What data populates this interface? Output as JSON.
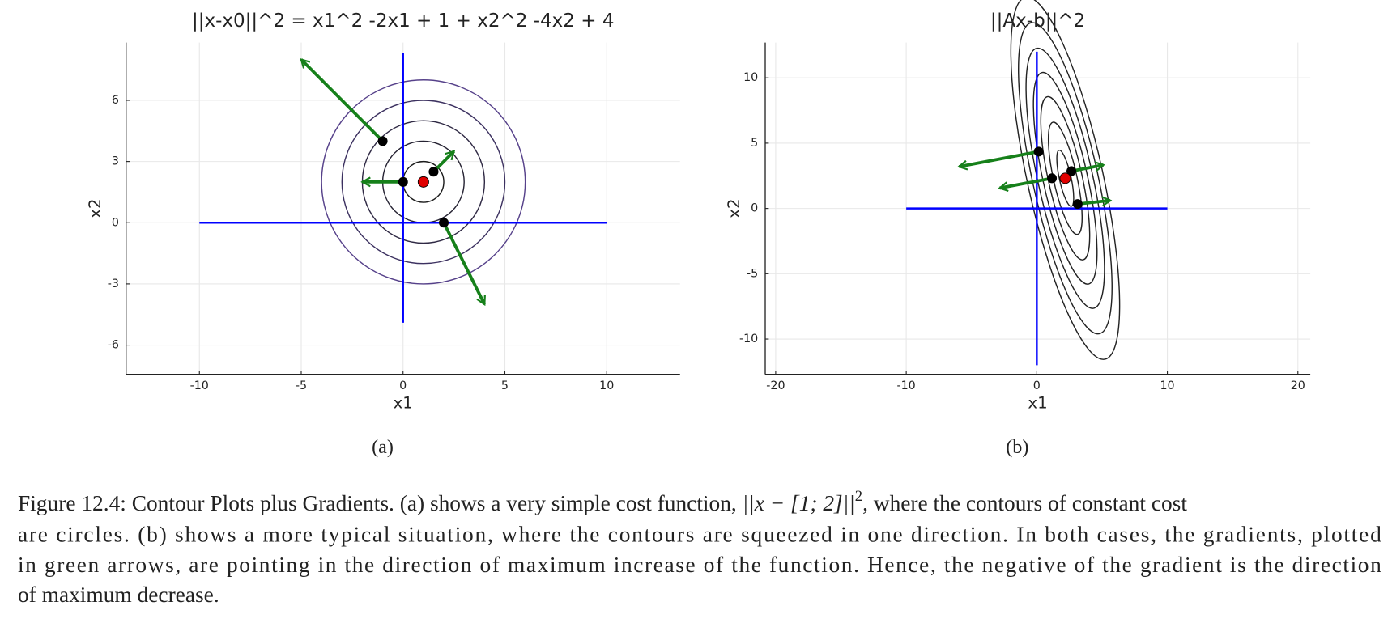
{
  "chart_data": [
    {
      "type": "contour",
      "title": "||x-x0||^2 = x1^2 -2x1 + 1 + x2^2 -4x2 + 4",
      "x_label": "x1",
      "y_label": "x2",
      "panel_label": "(a)",
      "xlim": [
        -13.6,
        13.6
      ],
      "ylim": [
        -7.43,
        8.83
      ],
      "xticks": [
        -10,
        -5,
        0,
        5,
        10
      ],
      "yticks": [
        -6,
        -3,
        0,
        3,
        6
      ],
      "grid": true,
      "axis_lines": [
        {
          "x": [
            -10,
            10
          ],
          "y": [
            0,
            0
          ],
          "color": "#0000ff"
        },
        {
          "x": [
            0,
            0
          ],
          "y": [
            -4.9,
            8.3
          ],
          "color": "#0000ff"
        }
      ],
      "contours": {
        "center": [
          1,
          2
        ],
        "angle": 0,
        "semi_axes": [
          [
            1,
            1
          ],
          [
            2,
            2
          ],
          [
            3,
            3
          ],
          [
            4,
            4
          ],
          [
            5,
            5
          ]
        ],
        "colors": [
          "#1c1c1c",
          "#262333",
          "#2f2944",
          "#3c3160",
          "#56418a"
        ]
      },
      "points": {
        "x": [
          -1,
          0,
          1.5,
          2
        ],
        "y": [
          4,
          2,
          2.5,
          0
        ],
        "color": "#000000"
      },
      "gradients": {
        "dx": [
          -4,
          -2,
          1,
          2
        ],
        "dy": [
          4,
          0,
          1,
          -4
        ],
        "color": "#16801a"
      },
      "minimum": {
        "x": 1,
        "y": 2,
        "color": "#e00000"
      }
    },
    {
      "type": "contour",
      "title": "||Ax-b||^2",
      "x_label": "x1",
      "y_label": "x2",
      "panel_label": "(b)",
      "xlim": [
        -20.8,
        20.95
      ],
      "ylim": [
        -12.7,
        12.7
      ],
      "xticks": [
        -20,
        -10,
        0,
        10,
        20
      ],
      "yticks": [
        -10,
        -5,
        0,
        5,
        10
      ],
      "grid": true,
      "axis_lines": [
        {
          "x": [
            -10,
            10
          ],
          "y": [
            0,
            0
          ],
          "color": "#0000ff"
        },
        {
          "x": [
            0,
            0
          ],
          "y": [
            -12,
            12
          ],
          "color": "#0000ff"
        }
      ],
      "contours": {
        "center": [
          2.18,
          2.31
        ],
        "angle": -77.6,
        "semi_axes": [
          [
            2.2,
            0.45
          ],
          [
            4.4,
            0.9
          ],
          [
            6.4,
            1.3
          ],
          [
            8.3,
            1.7
          ],
          [
            10.2,
            2.1
          ],
          [
            12.2,
            2.5
          ],
          [
            14.2,
            2.9
          ]
        ],
        "colors": [
          "#222222",
          "#222222",
          "#222222",
          "#222222",
          "#222222",
          "#222222",
          "#222222"
        ],
        "clip_y": [
          -10,
          10
        ]
      },
      "points": {
        "x": [
          0.14,
          1.16,
          2.65,
          3.13
        ],
        "y": [
          4.35,
          2.31,
          2.86,
          0.34
        ],
        "color": "#000000"
      },
      "gradients": {
        "dx": [
          -6.1,
          -4,
          2.45,
          2.5
        ],
        "dy": [
          -1.15,
          -0.75,
          0.47,
          0.27
        ],
        "color": "#16801a"
      },
      "minimum": {
        "x": 2.18,
        "y": 2.31,
        "color": "#e00000"
      }
    }
  ],
  "caption": {
    "line1_start": "Figure 12.4: Contour Plots plus Gradients. (a) shows a very simple cost function, ",
    "math": "||x − [1; 2]||",
    "math_power": "2",
    "line1_end": ", where the contours of constant cost",
    "lines": [
      "are circles. (b) shows a more typical situation, where the contours are squeezed in one direction. In both cases, the gradients, plotted",
      "in green arrows, are pointing in the direction of maximum increase of the function. Hence, the negative of the gradient is the direction",
      "of maximum decrease."
    ]
  }
}
